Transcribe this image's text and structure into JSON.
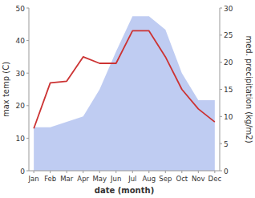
{
  "chart_data": {
    "type": "line",
    "xlabel": "date (month)",
    "ylabel": "max temp (C)",
    "y2label": "med. precipitation (kg/m2)",
    "categories": [
      "Jan",
      "Feb",
      "Mar",
      "Apr",
      "May",
      "Jun",
      "Jul",
      "Aug",
      "Sep",
      "Oct",
      "Nov",
      "Dec"
    ],
    "series": [
      {
        "type": "area",
        "axis": "y2",
        "color": "#aabbee",
        "values": [
          8.0,
          8.0,
          9.0,
          10.0,
          15.0,
          22.0,
          28.5,
          28.5,
          26.0,
          18.0,
          13.0,
          13.0
        ]
      },
      {
        "type": "line",
        "color": "#cc3333",
        "values": [
          13,
          27,
          27.5,
          35,
          33,
          33,
          43,
          43,
          35,
          25,
          19,
          15
        ]
      }
    ],
    "ylim": [
      0,
      50
    ],
    "yticks": [
      0,
      10,
      20,
      30,
      40,
      50
    ],
    "y2lim": [
      0,
      30
    ],
    "y2ticks": [
      0,
      5,
      10,
      15,
      20,
      25,
      30
    ],
    "grid": false
  }
}
